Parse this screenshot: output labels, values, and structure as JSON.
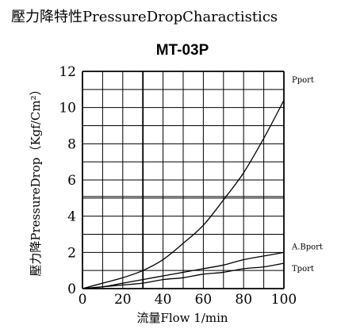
{
  "page": {
    "header": "壓力降特性PressureDropCharactistics"
  },
  "chart_data": {
    "type": "line",
    "title": "MT-03P",
    "xlabel": "流量Flow 1/min",
    "ylabel": "壓力降PressureDrop（Kgf/Cm²）",
    "xlim": [
      0,
      100
    ],
    "ylim": [
      0,
      12
    ],
    "x_ticks": [
      0,
      20,
      40,
      60,
      80,
      100
    ],
    "y_ticks": [
      0,
      2,
      4,
      6,
      8,
      10,
      12
    ],
    "x_minor_step": 10,
    "y_minor_step": 1,
    "grid": true,
    "colors": {
      "line": "#000000",
      "grid": "#000000",
      "emphasis_grid": "#000000"
    },
    "series": [
      {
        "name": "Pport",
        "x": [
          0,
          10,
          20,
          30,
          40,
          50,
          60,
          70,
          80,
          90,
          100
        ],
        "y": [
          0,
          0.3,
          0.6,
          1.0,
          1.6,
          2.5,
          3.5,
          4.9,
          6.4,
          8.3,
          10.4
        ]
      },
      {
        "name": "A.Bport",
        "x": [
          0,
          10,
          20,
          30,
          40,
          50,
          60,
          70,
          80,
          90,
          100
        ],
        "y": [
          0,
          0.1,
          0.3,
          0.5,
          0.7,
          0.9,
          1.1,
          1.3,
          1.6,
          1.8,
          2.0
        ]
      },
      {
        "name": "Tport",
        "x": [
          0,
          10,
          20,
          30,
          40,
          50,
          60,
          70,
          80,
          90,
          100
        ],
        "y": [
          0,
          0.1,
          0.2,
          0.3,
          0.5,
          0.6,
          0.8,
          0.9,
          1.1,
          1.2,
          1.4
        ]
      }
    ]
  }
}
